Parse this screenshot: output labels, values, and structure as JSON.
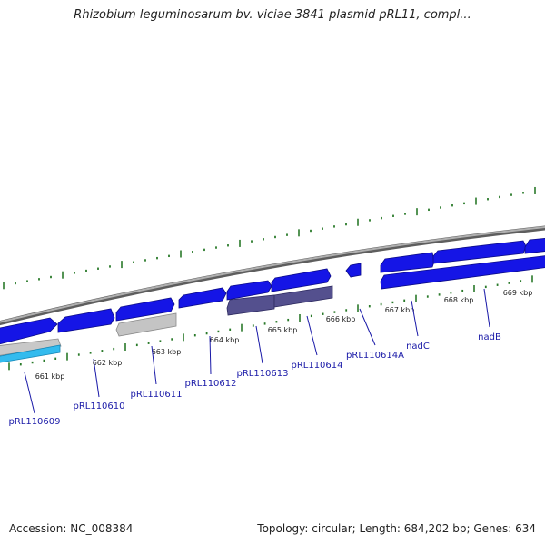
{
  "title": "Rhizobium leguminosarum bv. viciae 3841 plasmid pRL11, compl...",
  "footer": {
    "accession": "Accession: NC_008384",
    "summary": "Topology: circular; Length: 684,202 bp; Genes: 634"
  },
  "colors": {
    "backbone": "#8a8a8a",
    "tick": "#2a7a2a",
    "gene_blue": "#1515e6",
    "gene_purple": "#54508e",
    "gene_grey": "#c4c4c4",
    "gene_cyan": "#33bbee",
    "label": "#1a1aa8"
  },
  "ticks": [
    {
      "label": "661 kbp"
    },
    {
      "label": "662 kbp"
    },
    {
      "label": "663 kbp"
    },
    {
      "label": "664 kbp"
    },
    {
      "label": "665 kbp"
    },
    {
      "label": "666 kbp"
    },
    {
      "label": "667 kbp"
    },
    {
      "label": "668 kbp"
    },
    {
      "label": "669 kbp"
    }
  ],
  "gene_labels": [
    {
      "name": "pRL110609"
    },
    {
      "name": "pRL110610"
    },
    {
      "name": "pRL110611"
    },
    {
      "name": "pRL110612"
    },
    {
      "name": "pRL110613"
    },
    {
      "name": "pRL110614"
    },
    {
      "name": "pRL110614A"
    },
    {
      "name": "nadC"
    },
    {
      "name": "nadB"
    }
  ]
}
